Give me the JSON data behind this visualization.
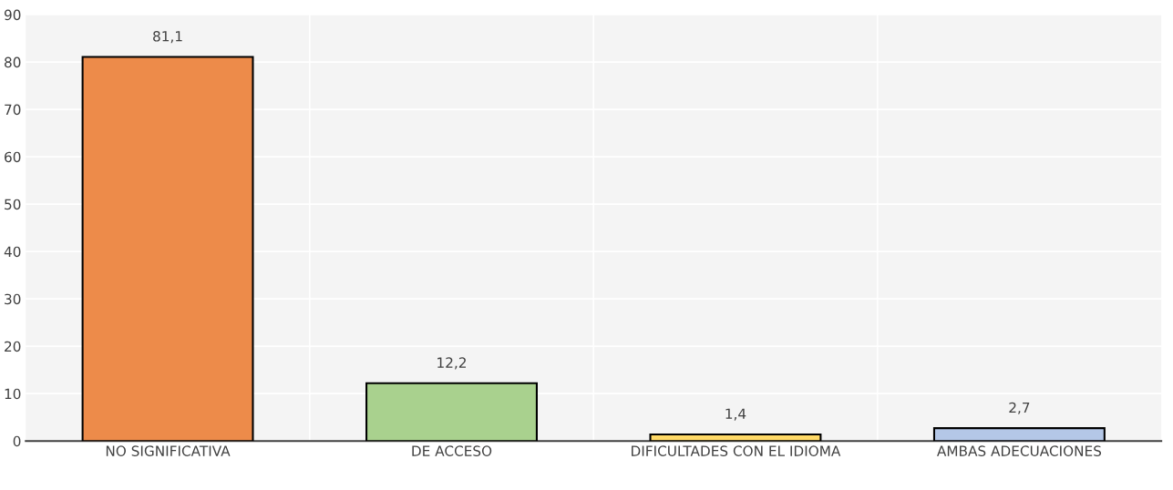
{
  "chart_data": {
    "type": "bar",
    "categories": [
      "NO SIGNIFICATIVA",
      "DE ACCESO",
      "DIFICULTADES CON EL IDIOMA",
      "AMBAS ADECUACIONES"
    ],
    "values": [
      81.1,
      12.2,
      1.4,
      2.7
    ],
    "colors": [
      "#ed8b4a",
      "#a9d18e",
      "#ffd966",
      "#b4c7e7"
    ],
    "value_labels": [
      "81,1",
      "12,2",
      "1,4",
      "2,7"
    ],
    "ylim": [
      0,
      90
    ],
    "yticks": [
      0,
      10,
      20,
      30,
      40,
      50,
      60,
      70,
      80,
      90
    ],
    "grid": true,
    "legend": false
  }
}
